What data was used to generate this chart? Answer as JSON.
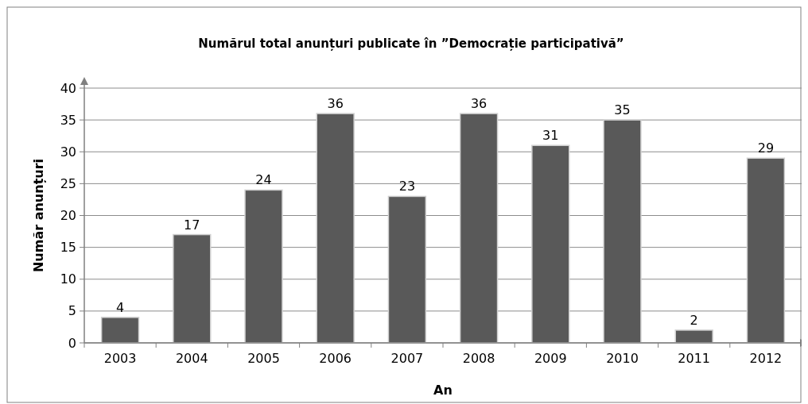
{
  "chart_data": {
    "type": "bar",
    "title": "Numărul total anunțuri publicate în ”Democrație participativă”",
    "xlabel": "An",
    "ylabel": "Număr anunțuri",
    "categories": [
      "2003",
      "2004",
      "2005",
      "2006",
      "2007",
      "2008",
      "2009",
      "2010",
      "2011",
      "2012"
    ],
    "values": [
      4,
      17,
      24,
      36,
      23,
      36,
      31,
      35,
      2,
      29
    ],
    "color": "#595959",
    "ylim": [
      0,
      40
    ],
    "yticks": [
      0,
      5,
      10,
      15,
      20,
      25,
      30,
      35,
      40
    ],
    "grid": "y",
    "data_labels": true
  }
}
